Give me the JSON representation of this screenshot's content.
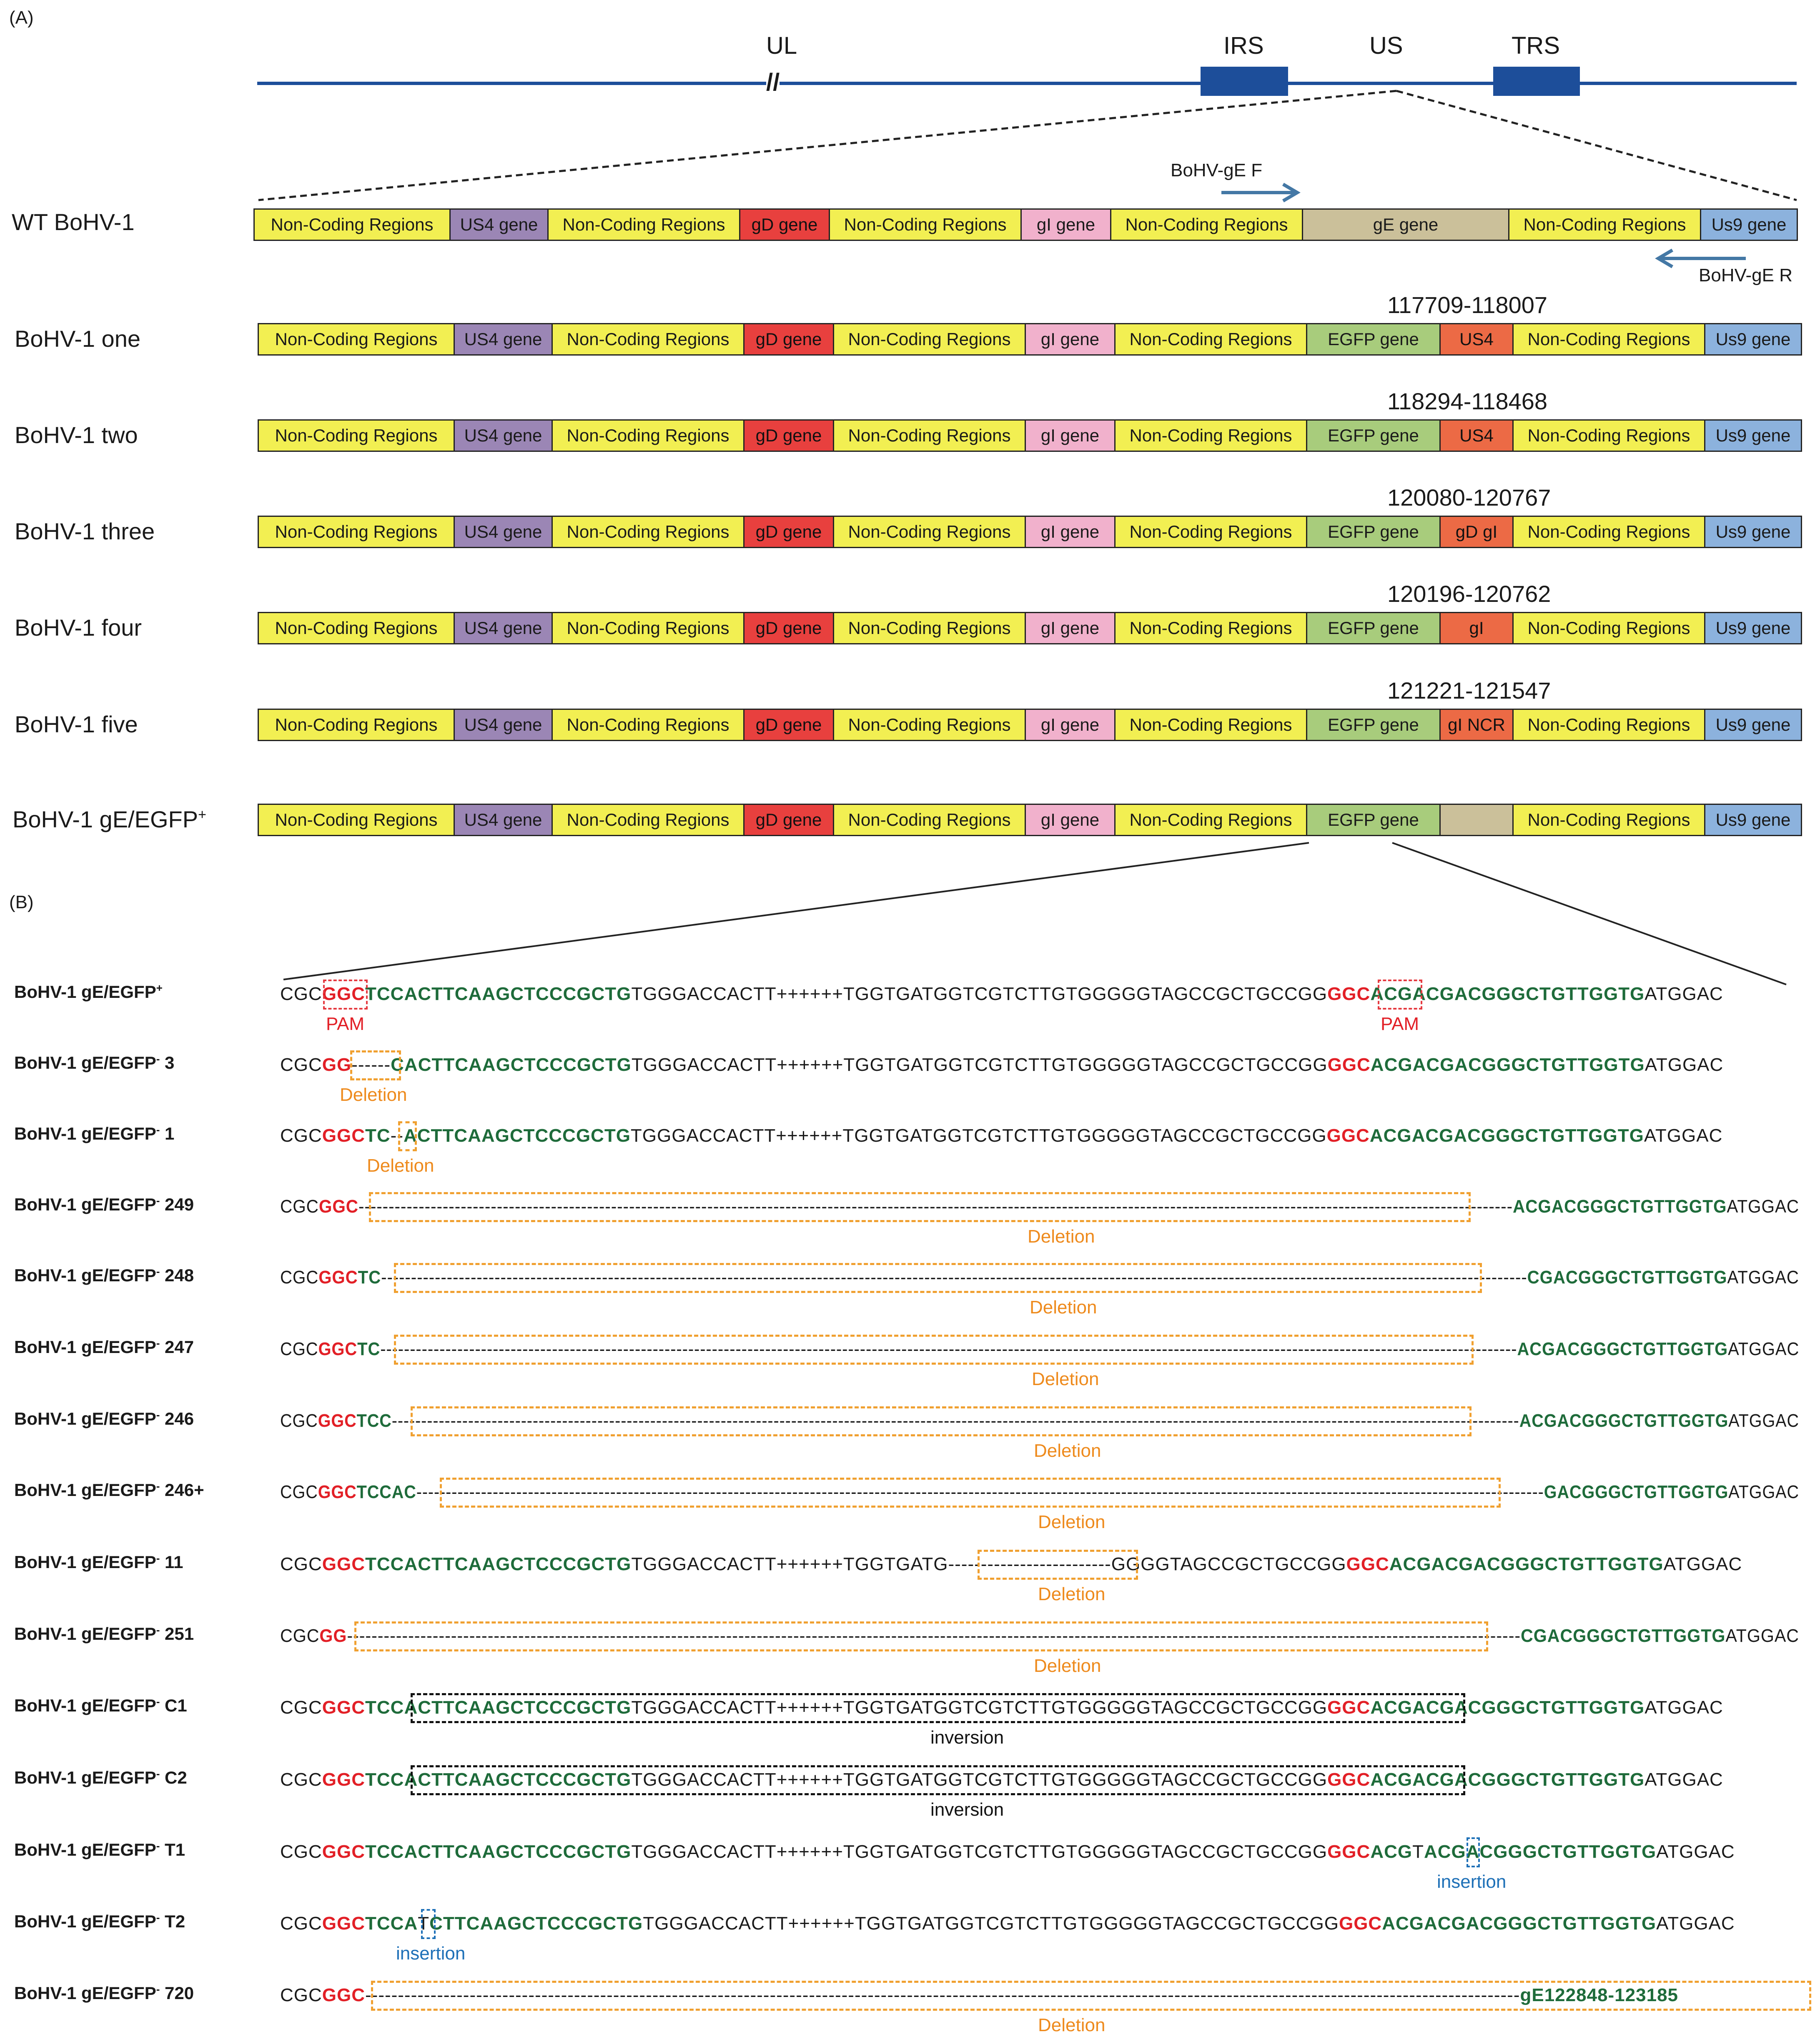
{
  "panel_a_label": "(A)",
  "panel_b_label": "(B)",
  "genome": {
    "ul": "UL",
    "break_mark": "//",
    "irs": "IRS",
    "us": "US",
    "trs": "TRS"
  },
  "primers": {
    "forward": "BoHV-gE F",
    "reverse": "BoHV-gE R"
  },
  "colors": {
    "ncr": "#f2ef52",
    "us4": "#9b86b5",
    "gd": "#e8403e",
    "gi": "#f1b1cc",
    "ge": "#cbc09a",
    "egfp": "#a8cc7c",
    "us9": "#8cb2dd",
    "frag": "#ec6a45",
    "genome": "#1d4e9a"
  },
  "maps": [
    {
      "label": "WT BoHV-1",
      "coord": "",
      "segments": [
        {
          "t": "Non-Coding Regions",
          "k": "ncr"
        },
        {
          "t": "US4 gene",
          "k": "us4"
        },
        {
          "t": "Non-Coding Regions",
          "k": "ncr"
        },
        {
          "t": "gD gene",
          "k": "gd"
        },
        {
          "t": "Non-Coding Regions",
          "k": "ncr"
        },
        {
          "t": "gI gene",
          "k": "gi"
        },
        {
          "t": "Non-Coding Regions",
          "k": "ncr"
        },
        {
          "t": "gE gene",
          "k": "ge"
        },
        {
          "t": "Non-Coding Regions",
          "k": "ncr"
        },
        {
          "t": "Us9 gene",
          "k": "us9"
        }
      ]
    },
    {
      "label": "BoHV-1 one",
      "coord": "117709-118007",
      "segments": [
        {
          "t": "Non-Coding Regions",
          "k": "ncr"
        },
        {
          "t": "US4 gene",
          "k": "us4"
        },
        {
          "t": "Non-Coding Regions",
          "k": "ncr"
        },
        {
          "t": "gD gene",
          "k": "gd"
        },
        {
          "t": "Non-Coding Regions",
          "k": "ncr"
        },
        {
          "t": "gI gene",
          "k": "gi"
        },
        {
          "t": "Non-Coding Regions",
          "k": "ncr"
        },
        {
          "t": "EGFP gene",
          "k": "egfp"
        },
        {
          "t": "US4",
          "k": "frag"
        },
        {
          "t": "Non-Coding Regions",
          "k": "ncr"
        },
        {
          "t": "Us9 gene",
          "k": "us9"
        }
      ]
    },
    {
      "label": "BoHV-1 two",
      "coord": "118294-118468",
      "segments": [
        {
          "t": "Non-Coding Regions",
          "k": "ncr"
        },
        {
          "t": "US4 gene",
          "k": "us4"
        },
        {
          "t": "Non-Coding Regions",
          "k": "ncr"
        },
        {
          "t": "gD gene",
          "k": "gd"
        },
        {
          "t": "Non-Coding Regions",
          "k": "ncr"
        },
        {
          "t": "gI gene",
          "k": "gi"
        },
        {
          "t": "Non-Coding Regions",
          "k": "ncr"
        },
        {
          "t": "EGFP gene",
          "k": "egfp"
        },
        {
          "t": "US4",
          "k": "frag"
        },
        {
          "t": "Non-Coding Regions",
          "k": "ncr"
        },
        {
          "t": "Us9 gene",
          "k": "us9"
        }
      ]
    },
    {
      "label": "BoHV-1 three",
      "coord": "120080-120767",
      "segments": [
        {
          "t": "Non-Coding Regions",
          "k": "ncr"
        },
        {
          "t": "US4 gene",
          "k": "us4"
        },
        {
          "t": "Non-Coding Regions",
          "k": "ncr"
        },
        {
          "t": "gD gene",
          "k": "gd"
        },
        {
          "t": "Non-Coding Regions",
          "k": "ncr"
        },
        {
          "t": "gI gene",
          "k": "gi"
        },
        {
          "t": "Non-Coding Regions",
          "k": "ncr"
        },
        {
          "t": "EGFP gene",
          "k": "egfp"
        },
        {
          "t": "gD  gI",
          "k": "frag"
        },
        {
          "t": "Non-Coding Regions",
          "k": "ncr"
        },
        {
          "t": "Us9 gene",
          "k": "us9"
        }
      ]
    },
    {
      "label": "BoHV-1 four",
      "coord": "120196-120762",
      "segments": [
        {
          "t": "Non-Coding Regions",
          "k": "ncr"
        },
        {
          "t": "US4 gene",
          "k": "us4"
        },
        {
          "t": "Non-Coding Regions",
          "k": "ncr"
        },
        {
          "t": "gD gene",
          "k": "gd"
        },
        {
          "t": "Non-Coding Regions",
          "k": "ncr"
        },
        {
          "t": "gI gene",
          "k": "gi"
        },
        {
          "t": "Non-Coding Regions",
          "k": "ncr"
        },
        {
          "t": "EGFP gene",
          "k": "egfp"
        },
        {
          "t": "gI",
          "k": "frag"
        },
        {
          "t": "Non-Coding Regions",
          "k": "ncr"
        },
        {
          "t": "Us9 gene",
          "k": "us9"
        }
      ]
    },
    {
      "label": "BoHV-1 five",
      "coord": "121221-121547",
      "segments": [
        {
          "t": "Non-Coding Regions",
          "k": "ncr"
        },
        {
          "t": "US4 gene",
          "k": "us4"
        },
        {
          "t": "Non-Coding Regions",
          "k": "ncr"
        },
        {
          "t": "gD gene",
          "k": "gd"
        },
        {
          "t": "Non-Coding Regions",
          "k": "ncr"
        },
        {
          "t": "gI gene",
          "k": "gi"
        },
        {
          "t": "Non-Coding Regions",
          "k": "ncr"
        },
        {
          "t": "EGFP gene",
          "k": "egfp"
        },
        {
          "t": "gI NCR",
          "k": "frag"
        },
        {
          "t": "Non-Coding Regions",
          "k": "ncr"
        },
        {
          "t": "Us9 gene",
          "k": "us9"
        }
      ]
    },
    {
      "label": "BoHV-1  gE/EGFP",
      "label_sup": "+",
      "coord": "",
      "segments": [
        {
          "t": "Non-Coding Regions",
          "k": "ncr"
        },
        {
          "t": "US4 gene",
          "k": "us4"
        },
        {
          "t": "Non-Coding Regions",
          "k": "ncr"
        },
        {
          "t": "gD gene",
          "k": "gd"
        },
        {
          "t": "Non-Coding Regions",
          "k": "ncr"
        },
        {
          "t": "gI gene",
          "k": "gi"
        },
        {
          "t": "Non-Coding Regions",
          "k": "ncr"
        },
        {
          "t": "EGFP gene",
          "k": "egfp"
        },
        {
          "t": "",
          "k": "ge"
        },
        {
          "t": "Non-Coding Regions",
          "k": "ncr"
        },
        {
          "t": "Us9 gene",
          "k": "us9"
        }
      ]
    }
  ],
  "sequences": [
    {
      "label": "BoHV-1  gE/EGFP",
      "sup": "+",
      "suffix": "",
      "seq": [
        [
          "n",
          "CGC"
        ],
        [
          "p",
          "GGC"
        ],
        [
          "g",
          "TCCACTTCAAGCTCCCGCTG"
        ],
        [
          "n",
          "TGGGACCACTT++++++TGGTGATGGTCGTCTTGTGGGGGTAGCCGCTGCCGG"
        ],
        [
          "p",
          "GGC"
        ],
        [
          "g",
          "ACGACGACGGGCTGTTGGTG"
        ],
        [
          "n",
          "ATGGAC"
        ]
      ],
      "notes": [
        {
          "text": "PAM",
          "kind": "pam"
        },
        {
          "text": "PAM",
          "kind": "pam"
        }
      ]
    },
    {
      "label": "BoHV-1  gE/EGFP",
      "sup": "-",
      "suffix": "   3",
      "seq": [
        [
          "n",
          "CGC"
        ],
        [
          "p",
          "GG"
        ],
        [
          "n",
          "------"
        ],
        [
          "g",
          "CACTTCAAGCTCCCGCTG"
        ],
        [
          "n",
          "TGGGACCACTT++++++TGGTGATGGTCGTCTTGTGGGGGTAGCCGCTGCCGG"
        ],
        [
          "p",
          "GGC"
        ],
        [
          "g",
          "ACGACGACGGGCTGTTGGTG"
        ],
        [
          "n",
          "ATGGAC"
        ]
      ],
      "notes": [
        {
          "text": "Deletion",
          "kind": "deletion"
        }
      ]
    },
    {
      "label": "BoHV-1  gE/EGFP",
      "sup": "-",
      "suffix": "   1",
      "seq": [
        [
          "n",
          "CGC"
        ],
        [
          "p",
          "GGC"
        ],
        [
          "g",
          "TC"
        ],
        [
          "n",
          "--"
        ],
        [
          "g",
          "ACTTCAAGCTCCCGCTG"
        ],
        [
          "n",
          "TGGGACCACTT++++++TGGTGATGGTCGTCTTGTGGGGGTAGCCGCTGCCGG"
        ],
        [
          "p",
          "GGC"
        ],
        [
          "g",
          "ACGACGACGGGCTGTTGGTG"
        ],
        [
          "n",
          "ATGGAC"
        ]
      ],
      "notes": [
        {
          "text": "Deletion",
          "kind": "deletion"
        }
      ]
    },
    {
      "label": "BoHV-1  gE/EGFP",
      "sup": "-",
      "suffix": " 249",
      "seq": [
        [
          "n",
          "CGC"
        ],
        [
          "p",
          "GGC"
        ],
        [
          "n",
          "------------------------------------------------------------------------------------------------------------------------------------------------------------------------------------------------"
        ],
        [
          "g",
          "ACGACGGGCTGTTGGTG"
        ],
        [
          "n",
          "ATGGAC"
        ]
      ],
      "notes": [
        {
          "text": "Deletion",
          "kind": "deletion"
        }
      ]
    },
    {
      "label": "BoHV-1  gE/EGFP",
      "sup": "-",
      "suffix": " 248",
      "seq": [
        [
          "n",
          "CGC"
        ],
        [
          "p",
          "GGC"
        ],
        [
          "g",
          "TC"
        ],
        [
          "n",
          "------------------------------------------------------------------------------------------------------------------------------------------------------------------------------------------------"
        ],
        [
          "g",
          "CGACGGGCTGTTGGTG"
        ],
        [
          "n",
          "ATGGAC"
        ]
      ],
      "notes": [
        {
          "text": "Deletion",
          "kind": "deletion"
        }
      ]
    },
    {
      "label": "BoHV-1  gE/EGFP",
      "sup": "-",
      "suffix": " 247",
      "seq": [
        [
          "n",
          "CGC"
        ],
        [
          "p",
          "GGC"
        ],
        [
          "g",
          "TC"
        ],
        [
          "n",
          "------------------------------------------------------------------------------------------------------------------------------------------------------------------------------------------------"
        ],
        [
          "g",
          "ACGACGGGCTGTTGGTG"
        ],
        [
          "n",
          "ATGGAC"
        ]
      ],
      "notes": [
        {
          "text": "Deletion",
          "kind": "deletion"
        }
      ]
    },
    {
      "label": "BoHV-1  gE/EGFP",
      "sup": "-",
      "suffix": "  246",
      "seq": [
        [
          "n",
          "CGC"
        ],
        [
          "p",
          "GGC"
        ],
        [
          "g",
          "TCC"
        ],
        [
          "n",
          "------------------------------------------------------------------------------------------------------------------------------------------------------------------------------------------------"
        ],
        [
          "g",
          "ACGACGGGCTGTTGGTG"
        ],
        [
          "n",
          "ATGGAC"
        ]
      ],
      "notes": [
        {
          "text": "Deletion",
          "kind": "deletion"
        }
      ]
    },
    {
      "label": "BoHV-1  gE/EGFP",
      "sup": "-",
      "suffix": "  246+",
      "seq": [
        [
          "n",
          "CGC"
        ],
        [
          "p",
          "GGC"
        ],
        [
          "g",
          "TCCAC"
        ],
        [
          "n",
          "------------------------------------------------------------------------------------------------------------------------------------------------------------------------------------------------"
        ],
        [
          "g",
          "GACGGGCTGTTGGTG"
        ],
        [
          "n",
          "ATGGAC"
        ]
      ],
      "notes": [
        {
          "text": "Deletion",
          "kind": "deletion"
        }
      ]
    },
    {
      "label": "BoHV-1  gE/EGFP",
      "sup": "-",
      "suffix": "  11",
      "seq": [
        [
          "n",
          "CGC"
        ],
        [
          "p",
          "GGC"
        ],
        [
          "g",
          "TCCACTTCAAGCTCCCGCTG"
        ],
        [
          "n",
          "TGGGACCACTT++++++TGGTGATG-------------------------GGGGTAGCCGCTGCCGG"
        ],
        [
          "p",
          "GGC"
        ],
        [
          "g",
          "ACGACGACGGGCTGTTGGTG"
        ],
        [
          "n",
          "ATGGAC"
        ]
      ],
      "notes": [
        {
          "text": "Deletion",
          "kind": "deletion"
        }
      ]
    },
    {
      "label": "BoHV-1  gE/EGFP",
      "sup": "-",
      "suffix": " 251",
      "seq": [
        [
          "n",
          "CGC"
        ],
        [
          "p",
          "GG"
        ],
        [
          "n",
          "------------------------------------------------------------------------------------------------------------------------------------------------------------------------------------------------"
        ],
        [
          "g",
          "CGACGGGCTGTTGGTG"
        ],
        [
          "n",
          "ATGGAC"
        ]
      ],
      "notes": [
        {
          "text": "Deletion",
          "kind": "deletion"
        }
      ]
    },
    {
      "label": "BoHV-1  gE/EGFP",
      "sup": "-",
      "suffix": "   C1",
      "seq": [
        [
          "n",
          "CGC"
        ],
        [
          "p",
          "GGC"
        ],
        [
          "g",
          "TCCACTTCAAGCTCCCGCTG"
        ],
        [
          "n",
          "TGGGACCACTT++++++TGGTGATGGTCGTCTTGTGGGGGTAGCCGCTGCCGG"
        ],
        [
          "p",
          "GGC"
        ],
        [
          "g",
          "ACGACGACGGGCTGTTGGTG"
        ],
        [
          "n",
          "ATGGAC"
        ]
      ],
      "notes": [
        {
          "text": "inversion",
          "kind": "inversion"
        }
      ]
    },
    {
      "label": "BoHV-1  gE/EGFP",
      "sup": "-",
      "suffix": "   C2",
      "seq": [
        [
          "n",
          "CGC"
        ],
        [
          "p",
          "GGC"
        ],
        [
          "g",
          "TCCACTTCAAGCTCCCGCTG"
        ],
        [
          "n",
          "TGGGACCACTT++++++TGGTGATGGTCGTCTTGTGGGGGTAGCCGCTGCCGG"
        ],
        [
          "p",
          "GGC"
        ],
        [
          "g",
          "ACGACGACGGGCTGTTGGTG"
        ],
        [
          "n",
          "ATGGAC"
        ]
      ],
      "notes": [
        {
          "text": "inversion",
          "kind": "inversion"
        }
      ]
    },
    {
      "label": "BoHV-1  gE/EGFP",
      "sup": "-",
      "suffix": "   T1",
      "seq": [
        [
          "n",
          "CGC"
        ],
        [
          "p",
          "GGC"
        ],
        [
          "g",
          "TCCACTTCAAGCTCCCGCTG"
        ],
        [
          "n",
          "TGGGACCACTT++++++TGGTGATGGTCGTCTTGTGGGGGTAGCCGCTGCCGG"
        ],
        [
          "p",
          "GGC"
        ],
        [
          "g",
          "ACG"
        ],
        [
          "n",
          "T"
        ],
        [
          "g",
          "ACGACGGGCTGTTGGTG"
        ],
        [
          "n",
          "ATGGAC"
        ]
      ],
      "notes": [
        {
          "text": "insertion",
          "kind": "insertion"
        }
      ]
    },
    {
      "label": "BoHV-1  gE/EGFP",
      "sup": "-",
      "suffix": "   T2",
      "seq": [
        [
          "n",
          "CGC"
        ],
        [
          "p",
          "GGC"
        ],
        [
          "g",
          "TCCA"
        ],
        [
          "n",
          "T"
        ],
        [
          "g",
          "CTTCAAGCTCCCGCTG"
        ],
        [
          "n",
          "TGGGACCACTT++++++TGGTGATGGTCGTCTTGTGGGGGTAGCCGCTGCCGG"
        ],
        [
          "p",
          "GGC"
        ],
        [
          "g",
          "ACGACGACGGGCTGTTGGTG"
        ],
        [
          "n",
          "ATGGAC"
        ]
      ],
      "notes": [
        {
          "text": "insertion",
          "kind": "insertion"
        }
      ]
    },
    {
      "label": "BoHV-1  gE/EGFP",
      "sup": "-",
      "suffix": "  720",
      "seq": [
        [
          "n",
          "CGC"
        ],
        [
          "p",
          "GGC"
        ],
        [
          "n",
          "---------------------------------------------------------------------------------------------------------------------------------------------------------------------------------"
        ],
        [
          "g",
          "gE122848-123185"
        ]
      ],
      "notes": [
        {
          "text": "Deletion",
          "kind": "deletion"
        }
      ]
    }
  ]
}
